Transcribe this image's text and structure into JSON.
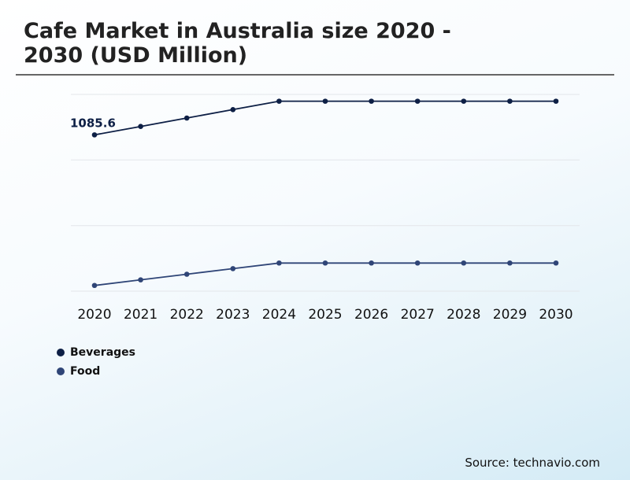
{
  "title": "Cafe Market in Australia size 2020 - 2030 (USD Million)",
  "source": "Source: technavio.com",
  "colors": {
    "beverages": "#0d1f45",
    "food": "#2f4577",
    "grid": "#e3e6ea"
  },
  "chart_data": {
    "type": "line",
    "title": "Cafe Market in Australia size 2020 - 2030 (USD Million)",
    "x": [
      "2020",
      "2021",
      "2022",
      "2023",
      "2024",
      "2025",
      "2026",
      "2027",
      "2028",
      "2029",
      "2030"
    ],
    "series": [
      {
        "name": "Beverages",
        "values": [
          1085.6,
          1119.8,
          1154.0,
          1188.2,
          1222.4,
          1222.4,
          1222.4,
          1222.4,
          1222.4,
          1222.4,
          1222.4
        ]
      },
      {
        "name": "Food",
        "values": [
          473.2,
          496.0,
          518.8,
          541.6,
          564.4,
          564.4,
          564.4,
          564.4,
          564.4,
          564.4,
          564.4
        ]
      }
    ],
    "annotations": [
      {
        "series": "Beverages",
        "x": "2020",
        "label": "1085.6"
      }
    ],
    "xlabel": "",
    "ylabel": "",
    "ylim": [
      450,
      1250
    ],
    "y_ticks_visible": false,
    "grid": "horizontal",
    "legend": "bottom-left"
  }
}
